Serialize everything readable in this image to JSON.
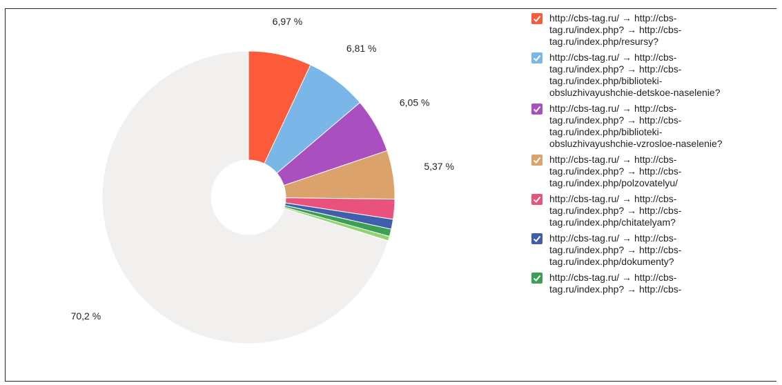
{
  "chart_data": {
    "type": "pie",
    "categories": [
      "http://cbs-tag.ru/ → http://cbs-tag.ru/index.php? → http://cbs-tag.ru/index.php/resursy?",
      "http://cbs-tag.ru/ → http://cbs-tag.ru/index.php? → http://cbs-tag.ru/index.php/biblioteki-obsluzhivayushchie-detskoe-naselenie?",
      "http://cbs-tag.ru/ → http://cbs-tag.ru/index.php? → http://cbs-tag.ru/index.php/biblioteki-obsluzhivayushchie-vzrosloe-naselenie?",
      "http://cbs-tag.ru/ → http://cbs-tag.ru/index.php? → http://cbs-tag.ru/index.php/polzovatelyu/",
      "http://cbs-tag.ru/ → http://cbs-tag.ru/index.php? → http://cbs-tag.ru/index.php/chitatelyam?",
      "http://cbs-tag.ru/ → http://cbs-tag.ru/index.php? → http://cbs-tag.ru/index.php/dokumenty?",
      "http://cbs-tag.ru/ → http://cbs-tag.ru/index.php? → http://cbs-",
      null,
      null
    ],
    "values": [
      6.97,
      6.81,
      6.05,
      5.37,
      2.2,
      1.1,
      0.8,
      0.5,
      70.2
    ],
    "value_labels": [
      "6,97 %",
      "6,81 %",
      "6,05 %",
      "5,37 %",
      null,
      null,
      null,
      null,
      "70,2 %"
    ],
    "colors": [
      "#fb5a3b",
      "#7ab6e8",
      "#a94fbf",
      "#dca26c",
      "#e8527c",
      "#3f5fad",
      "#3d9e56",
      "#8fd46c",
      "#f1f0ee"
    ],
    "donut": true
  }
}
